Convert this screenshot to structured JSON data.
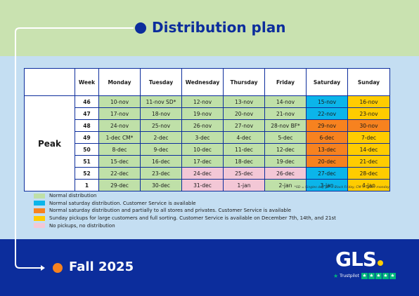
{
  "header": {
    "title": "Distribution plan"
  },
  "footer": {
    "subtitle": "Fall 2025"
  },
  "colors": {
    "normal": "#bfe0a8",
    "saturday_cs": "#0bb5ea",
    "saturday_partial": "#f7821f",
    "sunday": "#ffcc00",
    "none": "#f3c7d6",
    "blue": "#0c2d9c",
    "orange_dot": "#f7821f"
  },
  "table": {
    "headers": [
      "Week",
      "Monday",
      "Tuesday",
      "Wednesday",
      "Thursday",
      "Friday",
      "Saturday",
      "Sunday"
    ],
    "period": "Peak",
    "rows": [
      {
        "week": "46",
        "days": [
          {
            "t": "10-nov",
            "c": "normal"
          },
          {
            "t": "11-nov SD*",
            "c": "normal"
          },
          {
            "t": "12-nov",
            "c": "normal"
          },
          {
            "t": "13-nov",
            "c": "normal"
          },
          {
            "t": "14-nov",
            "c": "normal"
          },
          {
            "t": "15-nov",
            "c": "saturday_cs"
          },
          {
            "t": "16-nov",
            "c": "sunday"
          }
        ]
      },
      {
        "week": "47",
        "days": [
          {
            "t": "17-nov",
            "c": "normal"
          },
          {
            "t": "18-nov",
            "c": "normal"
          },
          {
            "t": "19-nov",
            "c": "normal"
          },
          {
            "t": "20-nov",
            "c": "normal"
          },
          {
            "t": "21-nov",
            "c": "normal"
          },
          {
            "t": "22-nov",
            "c": "saturday_cs"
          },
          {
            "t": "23-nov",
            "c": "sunday"
          }
        ]
      },
      {
        "week": "48",
        "days": [
          {
            "t": "24-nov",
            "c": "normal"
          },
          {
            "t": "25-nov",
            "c": "normal"
          },
          {
            "t": "26-nov",
            "c": "normal"
          },
          {
            "t": "27-nov",
            "c": "normal"
          },
          {
            "t": "28-nov BF*",
            "c": "normal"
          },
          {
            "t": "29-nov",
            "c": "saturday_partial"
          },
          {
            "t": "30-nov",
            "c": "saturday_partial"
          }
        ]
      },
      {
        "week": "49",
        "days": [
          {
            "t": "1-dec CM*",
            "c": "normal"
          },
          {
            "t": "2-dec",
            "c": "normal"
          },
          {
            "t": "3-dec",
            "c": "normal"
          },
          {
            "t": "4-dec",
            "c": "normal"
          },
          {
            "t": "5-dec",
            "c": "normal"
          },
          {
            "t": "6-dec",
            "c": "saturday_partial"
          },
          {
            "t": "7-dec",
            "c": "sunday"
          }
        ]
      },
      {
        "week": "50",
        "days": [
          {
            "t": "8-dec",
            "c": "normal"
          },
          {
            "t": "9-dec",
            "c": "normal"
          },
          {
            "t": "10-dec",
            "c": "normal"
          },
          {
            "t": "11-dec",
            "c": "normal"
          },
          {
            "t": "12-dec",
            "c": "normal"
          },
          {
            "t": "13-dec",
            "c": "saturday_partial"
          },
          {
            "t": "14-dec",
            "c": "sunday"
          }
        ]
      },
      {
        "week": "51",
        "days": [
          {
            "t": "15-dec",
            "c": "normal"
          },
          {
            "t": "16-dec",
            "c": "normal"
          },
          {
            "t": "17-dec",
            "c": "normal"
          },
          {
            "t": "18-dec",
            "c": "normal"
          },
          {
            "t": "19-dec",
            "c": "normal"
          },
          {
            "t": "20-dec",
            "c": "saturday_partial"
          },
          {
            "t": "21-dec",
            "c": "sunday"
          }
        ]
      },
      {
        "week": "52",
        "days": [
          {
            "t": "22-dec",
            "c": "normal"
          },
          {
            "t": "23-dec",
            "c": "normal"
          },
          {
            "t": "24-dec",
            "c": "none"
          },
          {
            "t": "25-dec",
            "c": "none"
          },
          {
            "t": "26-dec",
            "c": "none"
          },
          {
            "t": "27-dec",
            "c": "saturday_cs"
          },
          {
            "t": "28-dec",
            "c": "sunday"
          }
        ]
      },
      {
        "week": "1",
        "days": [
          {
            "t": "29-dec",
            "c": "normal"
          },
          {
            "t": "30-dec",
            "c": "normal"
          },
          {
            "t": "31-dec",
            "c": "none"
          },
          {
            "t": "1-jan",
            "c": "none"
          },
          {
            "t": "2-jan",
            "c": "normal"
          },
          {
            "t": "3-jan",
            "c": "saturday_cs"
          },
          {
            "t": "4-jan",
            "c": "sunday"
          }
        ]
      }
    ]
  },
  "footnote": "*SD = Singles day, BF = Black Friday, CM = Cyber monday",
  "legend": [
    {
      "c": "normal",
      "text": "Normal distribution"
    },
    {
      "c": "saturday_cs",
      "text": "Normal saturday distribution. Customer Service is available"
    },
    {
      "c": "saturday_partial",
      "text": "Normal saturday distribution and partially to all stores and privates. Customer Service is available"
    },
    {
      "c": "sunday",
      "text": "Sunday pickups for large customers and full sorting. Customer Service is available on December 7th, 14th, and 21st"
    },
    {
      "c": "none",
      "text": "No pickups, no distribution"
    }
  ],
  "brand": {
    "logo_text": "GLS",
    "logo_icon": "yellow-dot-icon",
    "trustpilot_label": "Trustpilot",
    "trustpilot_icon": "star-icon"
  }
}
